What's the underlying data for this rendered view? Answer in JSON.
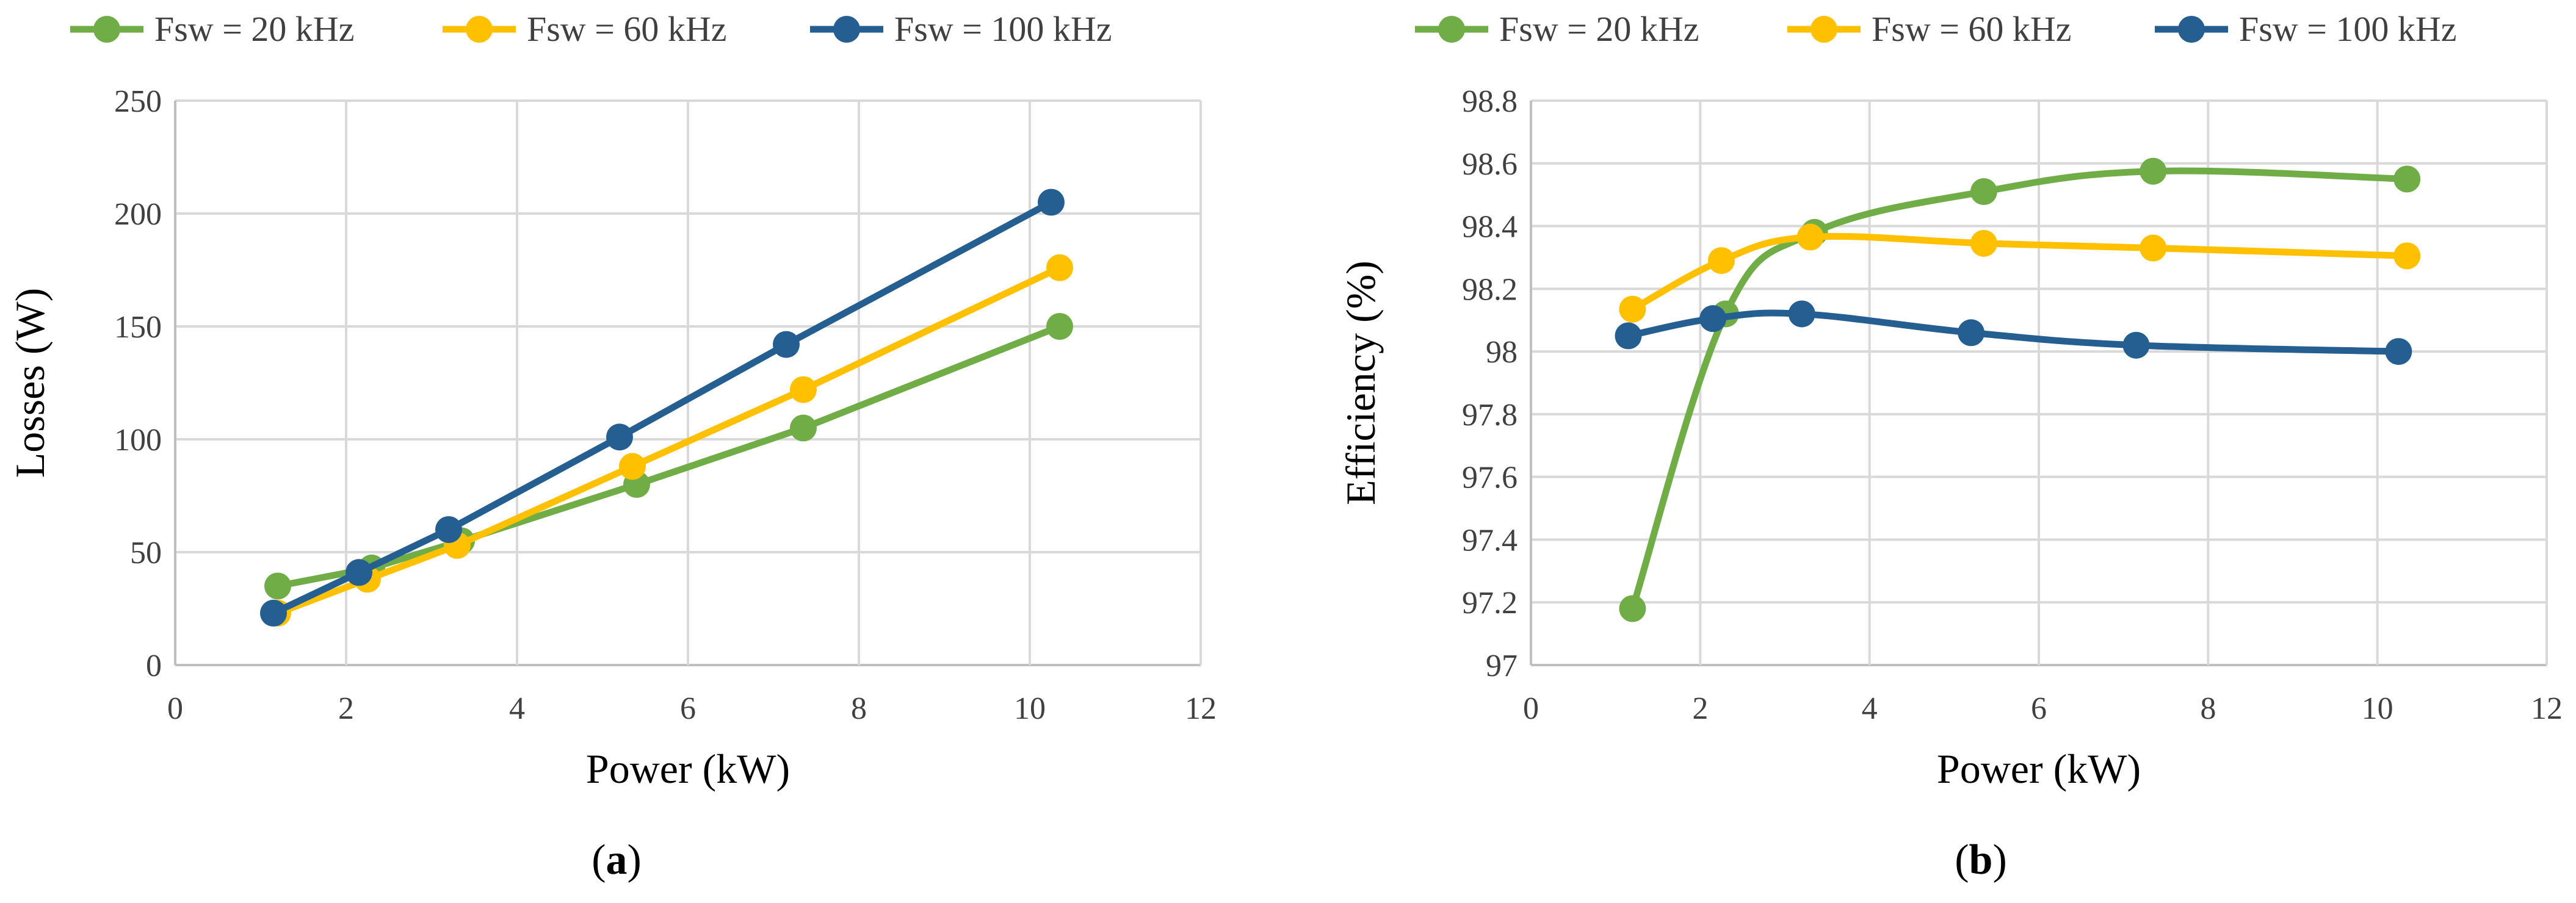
{
  "colors": {
    "green": "#70AD47",
    "yellow": "#FFC000",
    "blue": "#255E91"
  },
  "chart_data": [
    {
      "type": "line",
      "panel": "a",
      "panel_label": {
        "open": "(",
        "letter": "a",
        "close": ")"
      },
      "xlabel": "Power (kW)",
      "ylabel": "Losses (W)",
      "xlim": [
        0,
        12
      ],
      "ylim": [
        0,
        250
      ],
      "xticks": [
        0,
        2,
        4,
        6,
        8,
        10,
        12
      ],
      "yticks": [
        0,
        50,
        100,
        150,
        200,
        250
      ],
      "grid": true,
      "legend_position": "top",
      "smooth": false,
      "series": [
        {
          "name": "Fsw = 20 kHz",
          "color": "green",
          "x": [
            1.2,
            2.3,
            3.35,
            5.4,
            7.35,
            10.35
          ],
          "y": [
            35,
            43,
            55,
            80,
            105,
            150
          ]
        },
        {
          "name": "Fsw = 60 kHz",
          "color": "yellow",
          "x": [
            1.2,
            2.25,
            3.3,
            5.35,
            7.35,
            10.35
          ],
          "y": [
            23,
            38,
            53,
            88,
            122,
            176
          ]
        },
        {
          "name": "Fsw = 100 kHz",
          "color": "blue",
          "x": [
            1.15,
            2.15,
            3.2,
            5.2,
            7.15,
            10.25
          ],
          "y": [
            23,
            41,
            60,
            101,
            142,
            205
          ]
        }
      ]
    },
    {
      "type": "line",
      "panel": "b",
      "panel_label": {
        "open": "(",
        "letter": "b",
        "close": ")"
      },
      "xlabel": "Power (kW)",
      "ylabel": "Efficiency (%)",
      "xlim": [
        0,
        12
      ],
      "ylim": [
        97,
        98.8
      ],
      "xticks": [
        0,
        2,
        4,
        6,
        8,
        10,
        12
      ],
      "yticks": [
        97,
        97.2,
        97.4,
        97.6,
        97.8,
        98,
        98.2,
        98.4,
        98.6,
        98.8
      ],
      "ytick_labels": [
        "97",
        "97.2",
        "97.4",
        "97.6",
        "97.8",
        "98",
        "98.2",
        "98.4",
        "98.6",
        "98.8"
      ],
      "grid": true,
      "legend_position": "top",
      "smooth": true,
      "series": [
        {
          "name": "Fsw = 20 kHz",
          "color": "green",
          "x": [
            1.2,
            2.3,
            3.35,
            5.35,
            7.35,
            10.35
          ],
          "y": [
            97.18,
            98.12,
            98.38,
            98.51,
            98.575,
            98.55
          ]
        },
        {
          "name": "Fsw = 60 kHz",
          "color": "yellow",
          "x": [
            1.2,
            2.25,
            3.3,
            5.35,
            7.35,
            10.35
          ],
          "y": [
            98.135,
            98.29,
            98.365,
            98.345,
            98.33,
            98.305
          ]
        },
        {
          "name": "Fsw = 100 kHz",
          "color": "blue",
          "x": [
            1.15,
            2.15,
            3.2,
            5.2,
            7.15,
            10.25
          ],
          "y": [
            98.05,
            98.105,
            98.12,
            98.06,
            98.02,
            98.0
          ]
        }
      ]
    }
  ]
}
